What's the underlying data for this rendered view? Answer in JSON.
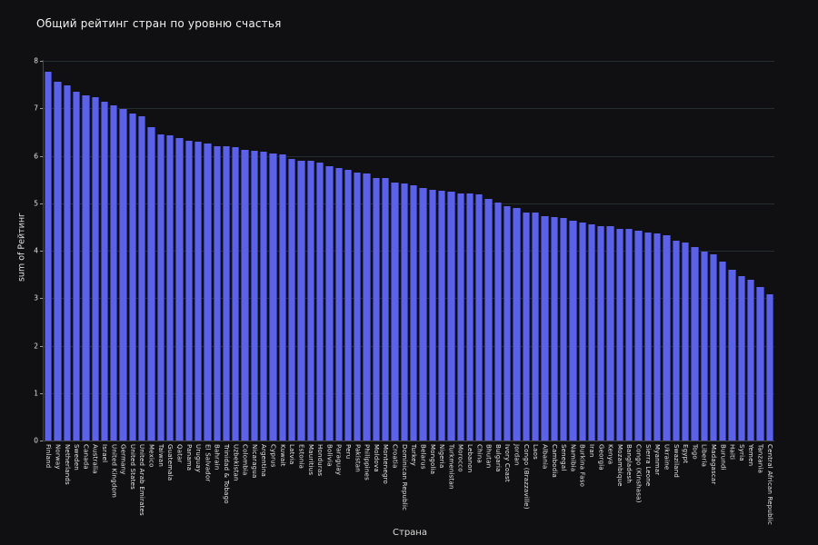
{
  "chart_data": {
    "type": "bar",
    "title": "Общий рейтинг стран по уровню счастья",
    "xlabel": "Страна",
    "ylabel": "sum of Рейтинг",
    "ylim": [
      0,
      8
    ],
    "yticks": [
      0,
      1,
      2,
      3,
      4,
      5,
      6,
      7,
      8
    ],
    "grid": "horizontal",
    "legend": "none",
    "background_color": "#101012",
    "bar_color": "#5b62e7",
    "gridline_color": "#2a3d3b",
    "categories": [
      "Finland",
      "Norway",
      "Netherlands",
      "Sweden",
      "Canada",
      "Australia",
      "Israel",
      "United Kingdom",
      "Germany",
      "United States",
      "United Arab Emirates",
      "Mexico",
      "Taiwan",
      "Guatemala",
      "Qatar",
      "Panama",
      "Uruguay",
      "El Salvador",
      "Bahrain",
      "Trinidad & Tobago",
      "Uzbekistan",
      "Colombia",
      "Nicaragua",
      "Argentina",
      "Cyprus",
      "Kuwait",
      "Latvia",
      "Estonia",
      "Mauritius",
      "Honduras",
      "Bolivia",
      "Paraguay",
      "Peru",
      "Pakistan",
      "Philippines",
      "Moldova",
      "Montenegro",
      "Croatia",
      "Dominican Republic",
      "Turkey",
      "Belarus",
      "Mongolia",
      "Nigeria",
      "Turkmenistan",
      "Morocco",
      "Lebanon",
      "China",
      "Bhutan",
      "Bulgaria",
      "Ivory Coast",
      "Jordan",
      "Congo (Brazzaville)",
      "Laos",
      "Albania",
      "Cambodia",
      "Senegal",
      "Namibia",
      "Burkina Faso",
      "Iran",
      "Georgia",
      "Kenya",
      "Mozambique",
      "Bangladesh",
      "Congo (Kinshasa)",
      "Sierra Leone",
      "Myanmar",
      "Ukraine",
      "Swaziland",
      "Egypt",
      "Togo",
      "Liberia",
      "Madagascar",
      "Burundi",
      "Haiti",
      "Syria",
      "Yemen",
      "Tanzania",
      "Central African Republic"
    ],
    "values": [
      7.769,
      7.554,
      7.488,
      7.343,
      7.278,
      7.228,
      7.139,
      7.054,
      6.985,
      6.892,
      6.825,
      6.595,
      6.446,
      6.436,
      6.374,
      6.321,
      6.293,
      6.253,
      6.199,
      6.192,
      6.174,
      6.125,
      6.105,
      6.086,
      6.046,
      6.021,
      5.94,
      5.893,
      5.888,
      5.86,
      5.779,
      5.743,
      5.697,
      5.653,
      5.631,
      5.529,
      5.523,
      5.432,
      5.425,
      5.373,
      5.323,
      5.285,
      5.265,
      5.247,
      5.208,
      5.197,
      5.191,
      5.082,
      5.011,
      4.944,
      4.906,
      4.812,
      4.796,
      4.719,
      4.7,
      4.681,
      4.639,
      4.587,
      4.548,
      4.519,
      4.509,
      4.466,
      4.456,
      4.418,
      4.374,
      4.36,
      4.332,
      4.212,
      4.166,
      4.085,
      3.975,
      3.933,
      3.775,
      3.597,
      3.462,
      3.38,
      3.231,
      3.083
    ]
  }
}
